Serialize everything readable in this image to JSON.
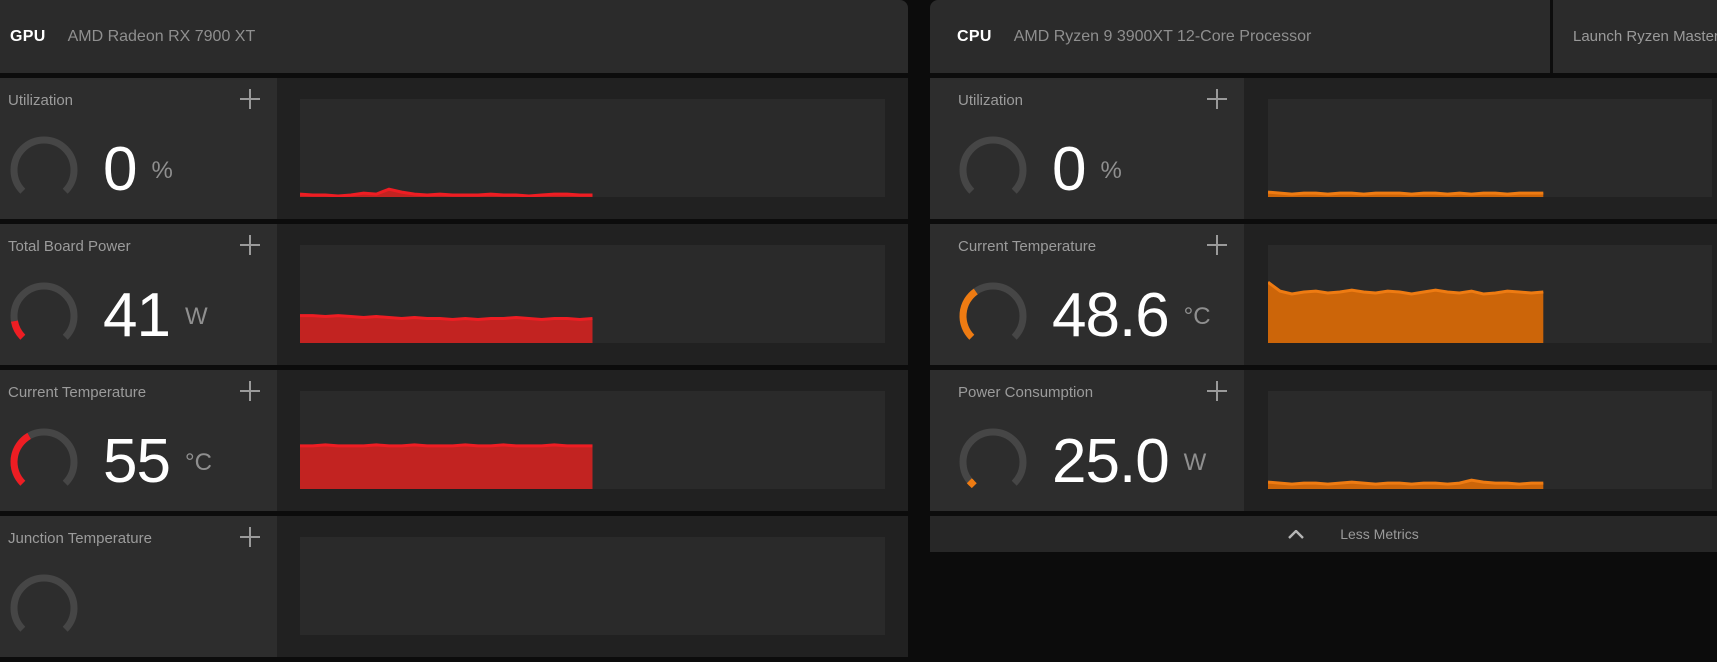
{
  "colors": {
    "gpu_accent_line": "#ee1d23",
    "gpu_accent_fill": "#c22321",
    "cpu_accent_line": "#ee7b12",
    "cpu_accent_fill": "#cc6509",
    "gauge_track": "#464646",
    "tile_bg": "#2d2d2d",
    "plot_bg": "#2a2a2a",
    "header_bg": "#2b2b2b",
    "page_bg": "#0c0c0c"
  },
  "panels": [
    {
      "id": "gpu",
      "header": {
        "kind": "GPU",
        "device": "AMD Radeon RX 7900 XT"
      },
      "metrics": [
        {
          "label": "Utilization",
          "value": "0",
          "unit": "%",
          "gauge": {
            "fraction": 0,
            "color": "#ee1d23",
            "marker": false
          },
          "chart": 0
        },
        {
          "label": "Total Board Power",
          "value": "41",
          "unit": "W",
          "gauge": {
            "fraction": 0.13,
            "color": "#ee1d23",
            "marker": false
          },
          "chart": 1
        },
        {
          "label": "Current Temperature",
          "value": "55",
          "unit": "°C",
          "gauge": {
            "fraction": 0.39,
            "color": "#ee1d23",
            "marker": false
          },
          "chart": 2
        },
        {
          "label": "Junction Temperature",
          "value": "",
          "unit": "",
          "gauge": {
            "fraction": 0,
            "color": "#ee1d23",
            "marker": false
          },
          "chart": 3
        }
      ]
    },
    {
      "id": "cpu",
      "header": {
        "kind": "CPU",
        "device": "AMD Ryzen 9 3900XT 12-Core Processor",
        "action": "Launch Ryzen Master"
      },
      "metrics": [
        {
          "label": "Utilization",
          "value": "0",
          "unit": "%",
          "gauge": {
            "fraction": 0,
            "color": "#ee7b12",
            "marker": false
          },
          "chart": 4
        },
        {
          "label": "Current Temperature",
          "value": "48.6",
          "unit": "°C",
          "gauge": {
            "fraction": 0.37,
            "color": "#ee7b12",
            "marker": false
          },
          "chart": 5
        },
        {
          "label": "Power Consumption",
          "value": "25.0",
          "unit": "W",
          "gauge": {
            "fraction": 0.02,
            "color": "#ee7b12",
            "marker": true
          },
          "chart": 6
        }
      ],
      "footer": {
        "label": "Less Metrics"
      }
    }
  ],
  "chart_data": [
    {
      "type": "area",
      "metric": "gpu-utilization",
      "x_fill_fraction": 0.5,
      "color_line": "#ee1d23",
      "color_fill": "#c22321",
      "heights_pct": [
        3,
        2,
        2,
        1,
        2,
        4,
        3,
        8,
        5,
        3,
        2,
        3,
        2,
        2,
        2,
        3,
        2,
        2,
        1,
        2,
        3,
        3,
        2,
        2
      ]
    },
    {
      "type": "area",
      "metric": "gpu-total-board-power",
      "x_fill_fraction": 0.5,
      "color_line": "#ee1d23",
      "color_fill": "#c22321",
      "heights_pct": [
        28,
        28,
        27,
        28,
        27,
        26,
        27,
        26,
        25,
        26,
        25,
        25,
        24,
        25,
        24,
        25,
        25,
        26,
        25,
        24,
        25,
        25,
        24,
        25
      ]
    },
    {
      "type": "area",
      "metric": "gpu-current-temperature",
      "x_fill_fraction": 0.5,
      "color_line": "#ee1d23",
      "color_fill": "#c22321",
      "heights_pct": [
        44,
        44,
        45,
        44,
        44,
        44,
        45,
        44,
        44,
        45,
        44,
        44,
        44,
        45,
        44,
        44,
        45,
        44,
        44,
        44,
        45,
        44,
        44,
        44
      ]
    },
    {
      "type": "area",
      "metric": "gpu-junction-temperature",
      "x_fill_fraction": 0.5,
      "color_line": "#ee1d23",
      "color_fill": "#c22321",
      "heights_pct": []
    },
    {
      "type": "area",
      "metric": "cpu-utilization",
      "x_fill_fraction": 0.62,
      "color_line": "#ee7b12",
      "color_fill": "#cc6509",
      "heights_pct": [
        5,
        4,
        3,
        4,
        4,
        3,
        4,
        4,
        3,
        4,
        4,
        4,
        3,
        4,
        4,
        3,
        4,
        3,
        4,
        4,
        3,
        4,
        4,
        4
      ]
    },
    {
      "type": "area",
      "metric": "cpu-current-temperature",
      "x_fill_fraction": 0.62,
      "color_line": "#ee7b12",
      "color_fill": "#cc6509",
      "heights_pct": [
        62,
        53,
        50,
        52,
        53,
        51,
        52,
        54,
        52,
        51,
        53,
        52,
        50,
        52,
        54,
        52,
        51,
        53,
        50,
        51,
        53,
        52,
        51,
        52
      ]
    },
    {
      "type": "area",
      "metric": "cpu-power-consumption",
      "x_fill_fraction": 0.62,
      "color_line": "#ee7b12",
      "color_fill": "#cc6509",
      "heights_pct": [
        7,
        6,
        5,
        6,
        6,
        5,
        6,
        7,
        6,
        5,
        6,
        6,
        5,
        6,
        6,
        5,
        6,
        9,
        7,
        6,
        6,
        5,
        6,
        6
      ]
    }
  ]
}
